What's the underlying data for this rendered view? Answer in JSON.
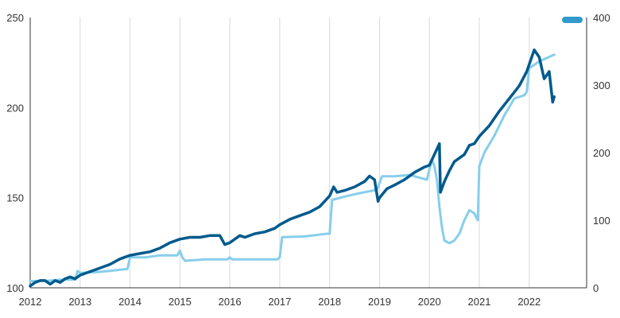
{
  "chart_data": {
    "type": "line",
    "title": "",
    "xlabel": "",
    "ylabel": "",
    "x_ticks": [
      "2012",
      "2013",
      "2014",
      "2015",
      "2016",
      "2017",
      "2018",
      "2019",
      "2020",
      "2021",
      "2022"
    ],
    "xlim": [
      2012,
      2023.15
    ],
    "y_left": {
      "ticks": [
        "100",
        "150",
        "200",
        "250"
      ],
      "lim": [
        100,
        250
      ]
    },
    "y_right": {
      "ticks": [
        "0",
        "100",
        "200",
        "300",
        "400"
      ],
      "lim": [
        0,
        400
      ]
    },
    "grid": "vertical",
    "legend": {
      "placement": "top-right"
    },
    "series": [
      {
        "axis": "left",
        "color": "#005a8c",
        "x": [
          2012.0,
          2012.1,
          2012.2,
          2012.3,
          2012.4,
          2012.5,
          2012.6,
          2012.7,
          2012.8,
          2012.9,
          2013.0,
          2013.2,
          2013.4,
          2013.6,
          2013.8,
          2014.0,
          2014.2,
          2014.4,
          2014.6,
          2014.8,
          2015.0,
          2015.2,
          2015.4,
          2015.6,
          2015.8,
          2015.9,
          2016.0,
          2016.1,
          2016.2,
          2016.3,
          2016.5,
          2016.7,
          2016.9,
          2017.0,
          2017.2,
          2017.4,
          2017.6,
          2017.8,
          2018.0,
          2018.08,
          2018.15,
          2018.3,
          2018.5,
          2018.7,
          2018.8,
          2018.9,
          2018.97,
          2019.0,
          2019.15,
          2019.3,
          2019.5,
          2019.7,
          2019.9,
          2020.0,
          2020.1,
          2020.2,
          2020.22,
          2020.3,
          2020.4,
          2020.5,
          2020.6,
          2020.7,
          2020.8,
          2020.9,
          2021.0,
          2021.2,
          2021.4,
          2021.6,
          2021.8,
          2021.95,
          2022.0,
          2022.1,
          2022.2,
          2022.3,
          2022.4,
          2022.47,
          2022.5
        ],
        "y": [
          101,
          103,
          104,
          104,
          102,
          104,
          103,
          105,
          106,
          105,
          107,
          109,
          111,
          113,
          116,
          118,
          119,
          120,
          122,
          125,
          127,
          128,
          128,
          129,
          129,
          124,
          125,
          127,
          129,
          128,
          130,
          131,
          133,
          135,
          138,
          140,
          142,
          145,
          151,
          156,
          153,
          154,
          156,
          159,
          162,
          160,
          148,
          150,
          155,
          157,
          160,
          164,
          167,
          168,
          174,
          180,
          153,
          159,
          165,
          170,
          172,
          174,
          179,
          180,
          184,
          190,
          198,
          205,
          212,
          220,
          224,
          232,
          228,
          216,
          220,
          203,
          206
        ]
      },
      {
        "axis": "right",
        "color": "#87ceeb",
        "x": [
          2012.0,
          2012.3,
          2012.6,
          2012.9,
          2012.95,
          2013.0,
          2013.3,
          2013.6,
          2013.95,
          2014.0,
          2014.3,
          2014.6,
          2014.95,
          2015.0,
          2015.05,
          2015.1,
          2015.5,
          2015.95,
          2016.0,
          2016.05,
          2016.1,
          2016.5,
          2016.95,
          2017.0,
          2017.05,
          2017.5,
          2017.95,
          2018.0,
          2018.05,
          2018.3,
          2018.6,
          2018.95,
          2019.0,
          2019.05,
          2019.3,
          2019.6,
          2019.95,
          2020.0,
          2020.05,
          2020.1,
          2020.15,
          2020.2,
          2020.25,
          2020.3,
          2020.4,
          2020.5,
          2020.6,
          2020.7,
          2020.8,
          2020.9,
          2020.97,
          2021.0,
          2021.1,
          2021.3,
          2021.5,
          2021.7,
          2021.9,
          2021.95,
          2022.0,
          2022.2,
          2022.5
        ],
        "y": [
          10,
          10,
          12,
          12,
          25,
          22,
          23,
          25,
          28,
          45,
          45,
          48,
          48,
          55,
          45,
          40,
          42,
          42,
          45,
          42,
          42,
          42,
          42,
          45,
          75,
          76,
          80,
          80,
          130,
          135,
          140,
          145,
          155,
          165,
          165,
          167,
          160,
          175,
          190,
          180,
          160,
          120,
          90,
          70,
          66,
          70,
          80,
          100,
          115,
          110,
          100,
          180,
          200,
          225,
          255,
          280,
          285,
          290,
          325,
          335,
          345
        ]
      }
    ]
  }
}
